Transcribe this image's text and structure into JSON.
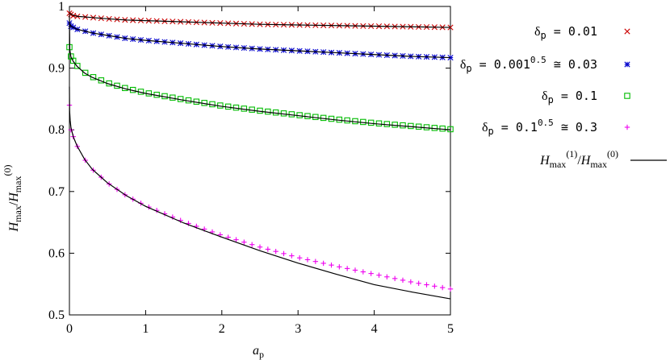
{
  "chart_data": {
    "type": "scatter",
    "xlabel": "a",
    "xlabel_sub": "p",
    "ylabel_parts": {
      "h1": "H",
      "sub1": "max",
      "slash": "/",
      "h2": "H",
      "sub2": "max",
      "sup2": "(0)"
    },
    "xlim": [
      0,
      5
    ],
    "ylim": [
      0.5,
      1.0
    ],
    "xticks": [
      0,
      1,
      2,
      3,
      4,
      5
    ],
    "yticks": [
      0.5,
      0.6,
      0.7,
      0.8,
      0.9,
      1.0
    ],
    "xtick_labels": [
      "0",
      "1",
      "2",
      "3",
      "4",
      "5"
    ],
    "ytick_labels": [
      "0.5",
      "0.6",
      "0.7",
      "0.8",
      "0.9",
      "1"
    ],
    "grid": false,
    "legend_placement": "right",
    "series": [
      {
        "key": "d001",
        "marker": "x",
        "color": "#cc0000",
        "legend": {
          "delta": "δ",
          "sub": "p",
          "text": " = 0.01",
          "exp": "",
          "tail": ""
        },
        "x": [
          0,
          0.02,
          0.05,
          0.1,
          0.2,
          0.3,
          0.5,
          0.75,
          1.0,
          1.5,
          2.0,
          2.5,
          3.0,
          3.5,
          4.0,
          4.5,
          5.0
        ],
        "y": [
          0.989,
          0.987,
          0.985,
          0.984,
          0.983,
          0.982,
          0.98,
          0.978,
          0.977,
          0.975,
          0.973,
          0.971,
          0.97,
          0.969,
          0.968,
          0.967,
          0.966
        ]
      },
      {
        "key": "d003",
        "marker": "asterisk",
        "color": "#0000cc",
        "legend": {
          "delta": "δ",
          "sub": "p",
          "text": " = 0.001",
          "exp": "0.5",
          "tail": " ≅ 0.03"
        },
        "x": [
          0,
          0.02,
          0.05,
          0.1,
          0.2,
          0.3,
          0.5,
          0.75,
          1.0,
          1.5,
          2.0,
          2.5,
          3.0,
          3.5,
          4.0,
          4.5,
          5.0
        ],
        "y": [
          0.973,
          0.968,
          0.966,
          0.963,
          0.96,
          0.957,
          0.953,
          0.948,
          0.945,
          0.94,
          0.935,
          0.931,
          0.928,
          0.925,
          0.922,
          0.919,
          0.917
        ]
      },
      {
        "key": "d01",
        "marker": "square",
        "color": "#00bb00",
        "legend": {
          "delta": "δ",
          "sub": "p",
          "text": " = 0.1",
          "exp": "",
          "tail": ""
        },
        "x": [
          0,
          0.02,
          0.05,
          0.1,
          0.2,
          0.3,
          0.5,
          0.75,
          1.0,
          1.5,
          2.0,
          2.5,
          3.0,
          3.5,
          4.0,
          4.5,
          5.0
        ],
        "y": [
          0.934,
          0.919,
          0.912,
          0.904,
          0.893,
          0.886,
          0.876,
          0.867,
          0.86,
          0.849,
          0.839,
          0.831,
          0.824,
          0.817,
          0.811,
          0.806,
          0.801
        ]
      },
      {
        "key": "d03",
        "marker": "plus",
        "color": "#ee00ee",
        "legend": {
          "delta": "δ",
          "sub": "p",
          "text": " = 0.1",
          "exp": "0.5",
          "tail": " ≅ 0.3"
        },
        "x": [
          0,
          0.02,
          0.05,
          0.1,
          0.2,
          0.3,
          0.5,
          0.75,
          1.0,
          1.5,
          2.0,
          2.5,
          3.0,
          3.5,
          4.0,
          4.5,
          5.0
        ],
        "y": [
          0.84,
          0.8,
          0.789,
          0.774,
          0.752,
          0.736,
          0.714,
          0.693,
          0.677,
          0.651,
          0.629,
          0.61,
          0.593,
          0.579,
          0.566,
          0.553,
          0.542
        ]
      },
      {
        "key": "theory",
        "marker": "line",
        "color": "#000000",
        "legend": {
          "h1": "H",
          "sub1": "max",
          "sup1": "(1)",
          "slash": "/",
          "h2": "H",
          "sub2": "max",
          "sup2": "(0)"
        },
        "curves": [
          {
            "x": [
              0,
              0.02,
              0.05,
              0.1,
              0.2,
              0.3,
              0.5,
              0.75,
              1.0,
              1.5,
              2.0,
              2.5,
              3.0,
              3.5,
              4.0,
              4.5,
              5.0
            ],
            "y": [
              0.9895,
              0.9875,
              0.9855,
              0.984,
              0.983,
              0.982,
              0.98,
              0.978,
              0.977,
              0.975,
              0.973,
              0.971,
              0.97,
              0.969,
              0.968,
              0.967,
              0.966
            ]
          },
          {
            "x": [
              0,
              0.02,
              0.05,
              0.1,
              0.2,
              0.3,
              0.5,
              0.75,
              1.0,
              1.5,
              2.0,
              2.5,
              3.0,
              3.5,
              4.0,
              4.5,
              5.0
            ],
            "y": [
              0.973,
              0.968,
              0.966,
              0.963,
              0.96,
              0.957,
              0.953,
              0.948,
              0.945,
              0.94,
              0.935,
              0.931,
              0.928,
              0.925,
              0.922,
              0.919,
              0.917
            ]
          },
          {
            "x": [
              0,
              0.005,
              0.02,
              0.05,
              0.1,
              0.2,
              0.3,
              0.5,
              0.75,
              1.0,
              1.5,
              2.0,
              2.5,
              3.0,
              3.5,
              4.0,
              4.5,
              5.0
            ],
            "y": [
              0.985,
              0.93,
              0.918,
              0.911,
              0.903,
              0.892,
              0.885,
              0.875,
              0.866,
              0.859,
              0.848,
              0.838,
              0.83,
              0.823,
              0.816,
              0.81,
              0.805,
              0.8
            ]
          },
          {
            "x": [
              0,
              0.003,
              0.01,
              0.02,
              0.05,
              0.1,
              0.2,
              0.3,
              0.5,
              0.75,
              1.0,
              1.5,
              2.0,
              2.5,
              3.0,
              3.5,
              4.0,
              4.5,
              5.0
            ],
            "y": [
              0.87,
              0.83,
              0.815,
              0.804,
              0.789,
              0.774,
              0.752,
              0.736,
              0.714,
              0.693,
              0.676,
              0.649,
              0.626,
              0.604,
              0.584,
              0.566,
              0.549,
              0.537,
              0.526
            ]
          }
        ]
      }
    ]
  }
}
